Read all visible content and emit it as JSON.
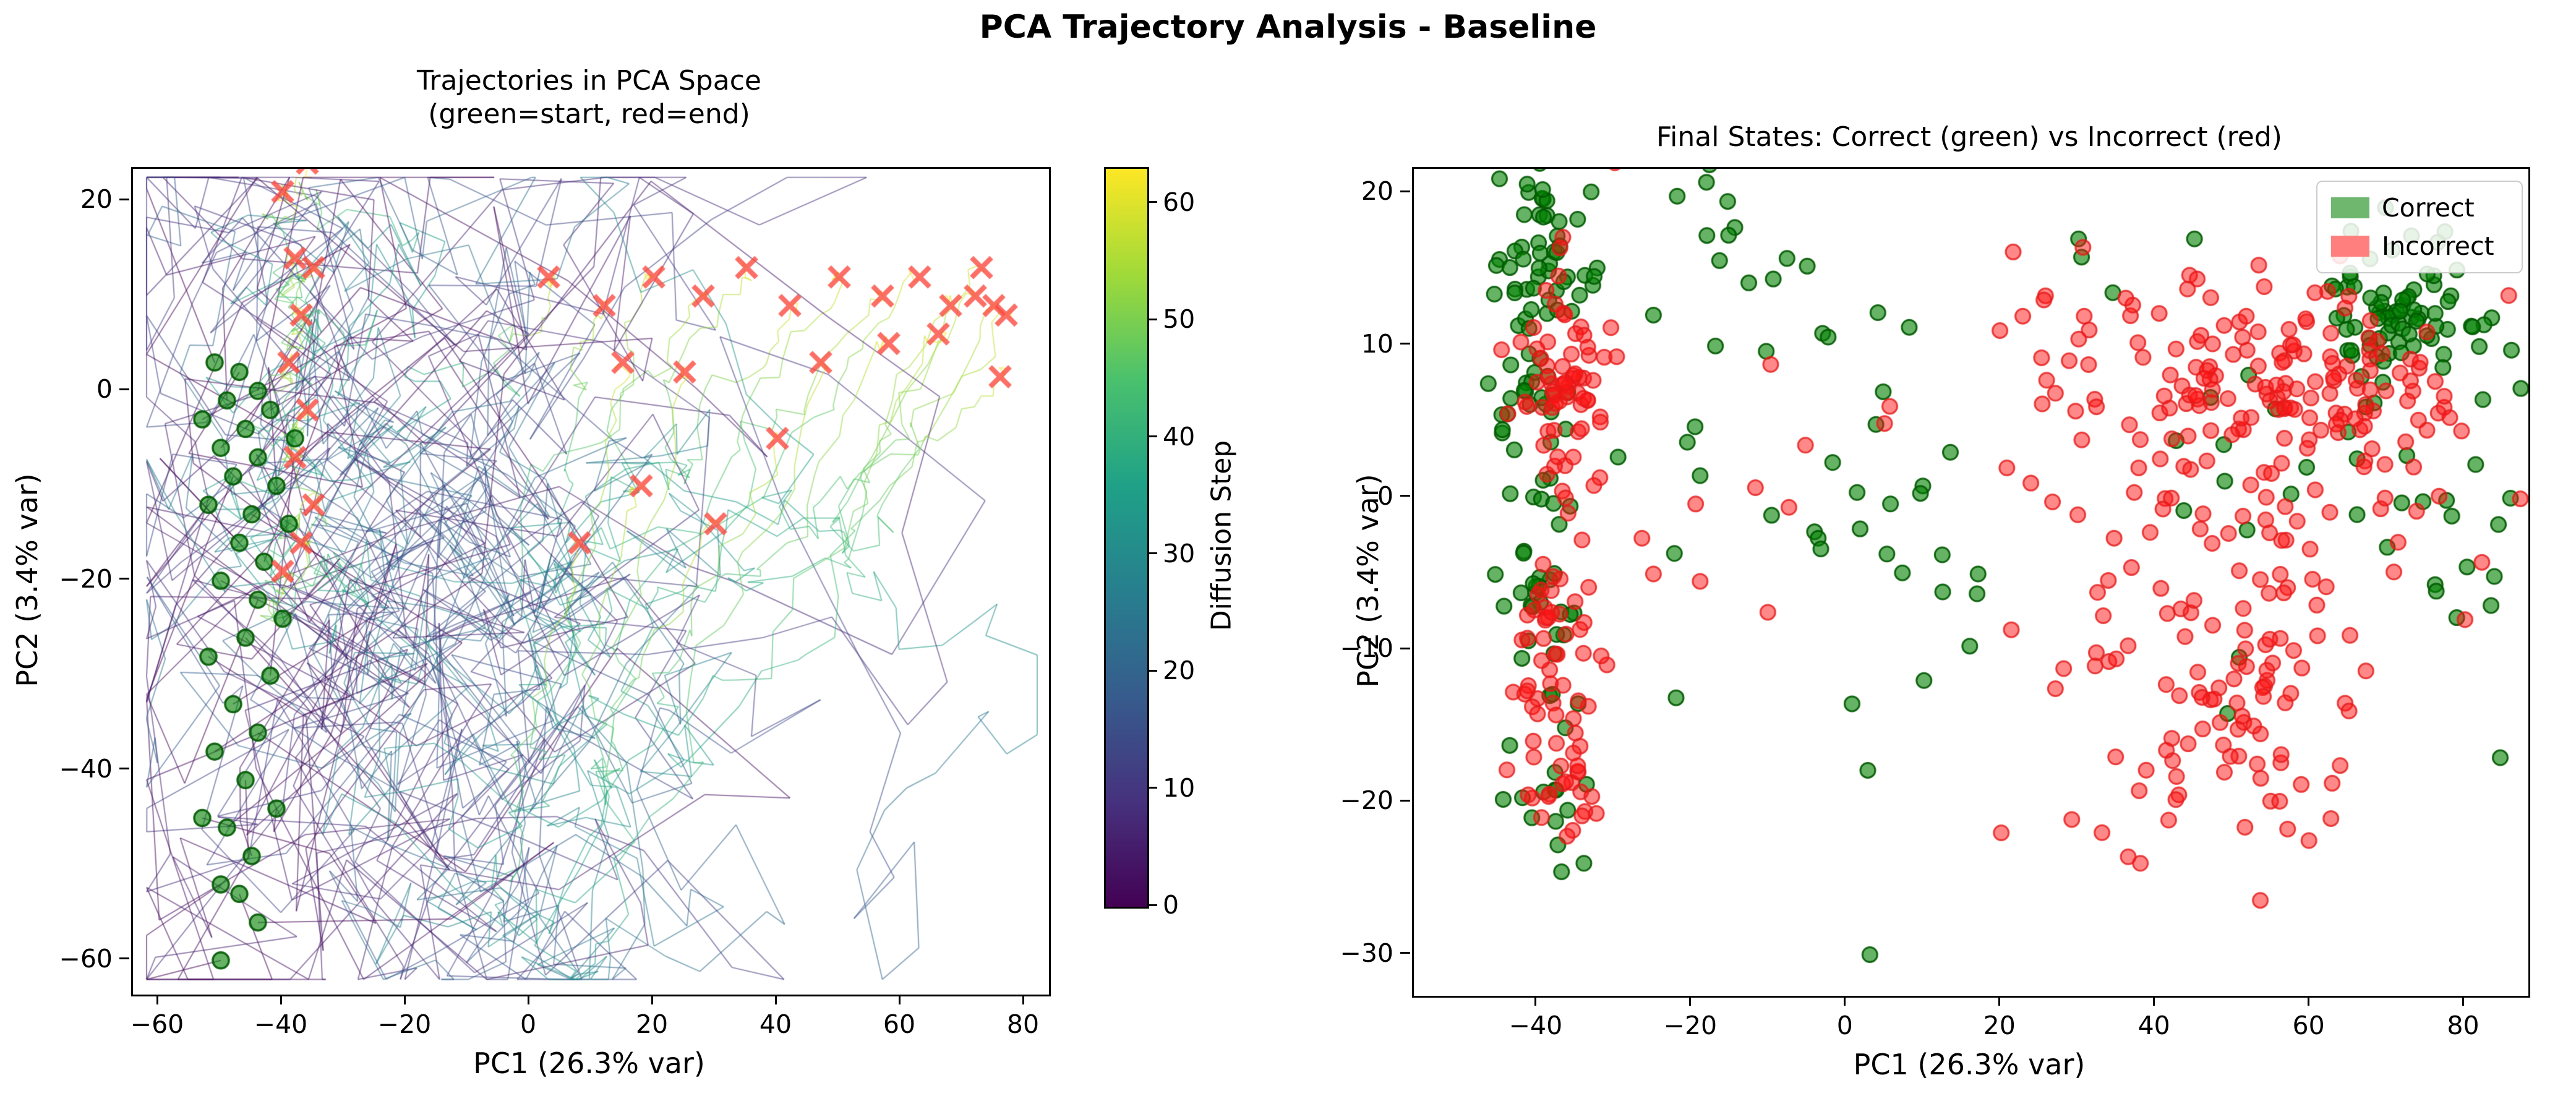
{
  "figure": {
    "suptitle": "PCA Trajectory Analysis - Baseline",
    "background": "#ffffff"
  },
  "left_plot": {
    "title_line1": "Trajectories in PCA Space",
    "title_line2": "(green=start, red=end)",
    "xlabel": "PC1 (26.3% var)",
    "ylabel": "PC2 (3.4% var)",
    "xticks": [
      -60,
      -40,
      -20,
      0,
      20,
      40,
      60,
      80
    ],
    "yticks": [
      20,
      0,
      -20,
      -40,
      -60
    ],
    "xlim": [
      -64.2,
      83.9
    ],
    "ylim": [
      -63.6,
      23.4
    ]
  },
  "colorbar": {
    "label": "Diffusion Step",
    "ticks": [
      0,
      10,
      20,
      30,
      40,
      50,
      60
    ],
    "vmin": 0,
    "vmax": 63,
    "colormap": "viridis",
    "viridis_stops": [
      "#440154",
      "#46327e",
      "#365c8d",
      "#277f8e",
      "#1fa187",
      "#4ac16d",
      "#a0da39",
      "#fde725"
    ]
  },
  "right_plot": {
    "title": "Final States: Correct (green) vs Incorrect (red)",
    "xlabel": "PC1 (26.3% var)",
    "ylabel": "PC2 (3.4% var)",
    "xticks": [
      -40,
      -20,
      0,
      20,
      40,
      60,
      80
    ],
    "yticks": [
      20,
      10,
      0,
      -10,
      -20,
      -30
    ],
    "xlim": [
      -56.0,
      88.2
    ],
    "ylim": [
      -32.7,
      21.6
    ]
  },
  "legend": {
    "items": [
      {
        "label": "Correct",
        "color": "#6fb66f"
      },
      {
        "label": "Incorrect",
        "color": "#ff7f7f"
      }
    ]
  },
  "style": {
    "green_fill": "rgba(0,128,0,0.6)",
    "green_edge": "rgba(0,90,0,0.9)",
    "red_fill": "rgba(255,20,20,0.5)",
    "red_edge": "rgba(230,25,25,0.8)",
    "end_x_color": "rgba(250,75,65,0.8)",
    "trajectory_alpha": 0.55,
    "trajectory_width": 2
  },
  "chart_data": [
    {
      "type": "line",
      "panel": "left",
      "description": "Diffusion trajectories in PCA space, 64 steps each, segment color = diffusion step (viridis 0-63); green circle = start, red x = end",
      "n_steps": 64,
      "seed": 9,
      "trajectory_format": [
        "start_x",
        "start_y",
        "end_x",
        "end_y"
      ],
      "trajectories": [
        [
          -51,
          3,
          -36,
          24
        ],
        [
          -47,
          2,
          3,
          12
        ],
        [
          -44,
          0,
          -40,
          21
        ],
        [
          -49,
          -1,
          12,
          9
        ],
        [
          -53,
          -3,
          -38,
          14
        ],
        [
          -46,
          -4,
          20,
          12
        ],
        [
          -42,
          -2,
          28,
          10
        ],
        [
          -50,
          -6,
          -35,
          13
        ],
        [
          -44,
          -7,
          35,
          13
        ],
        [
          -48,
          -9,
          42,
          9
        ],
        [
          -41,
          -10,
          -37,
          8
        ],
        [
          -52,
          -12,
          50,
          12
        ],
        [
          -45,
          -13,
          57,
          10
        ],
        [
          -39,
          -14,
          -39,
          3
        ],
        [
          -47,
          -16,
          63,
          12
        ],
        [
          -43,
          -18,
          68,
          9
        ],
        [
          -50,
          -20,
          -36,
          -2
        ],
        [
          -44,
          -22,
          72,
          10
        ],
        [
          -40,
          -24,
          75,
          9
        ],
        [
          -46,
          -26,
          -38,
          -7
        ],
        [
          -52,
          -28,
          77,
          8
        ],
        [
          -42,
          -30,
          73,
          13
        ],
        [
          -48,
          -33,
          -35,
          -12
        ],
        [
          -44,
          -36,
          66,
          6
        ],
        [
          -51,
          -38,
          58,
          5
        ],
        [
          -46,
          -41,
          -37,
          -16
        ],
        [
          -41,
          -44,
          40,
          -5
        ],
        [
          -49,
          -46,
          30,
          -14
        ],
        [
          -53,
          -45,
          -40,
          -19
        ],
        [
          -45,
          -49,
          18,
          -10
        ],
        [
          -50,
          -52,
          8,
          -16
        ],
        [
          -47,
          -53,
          25,
          2
        ],
        [
          -44,
          -56,
          15,
          3
        ],
        [
          -50,
          -60,
          47,
          3
        ],
        [
          -38,
          -5,
          76,
          1.5
        ]
      ]
    },
    {
      "type": "scatter",
      "panel": "right",
      "description": "Final states of trajectories; green = correct, red = incorrect",
      "seed": 23,
      "cluster_format": [
        "class",
        "center_x",
        "center_y",
        "sd_x",
        "sd_y",
        "count"
      ],
      "clusters": [
        [
          "correct",
          -40,
          16,
          3.5,
          4.5,
          55
        ],
        [
          "correct",
          -41,
          4,
          3,
          5,
          30
        ],
        [
          "correct",
          -40,
          -8,
          3,
          4,
          25
        ],
        [
          "correct",
          -38,
          -20,
          3,
          2.5,
          14
        ],
        [
          "correct",
          -8,
          6,
          11,
          8,
          30
        ],
        [
          "correct",
          5,
          -6,
          8,
          5,
          12
        ],
        [
          "correct",
          72,
          12,
          5.5,
          2.5,
          75
        ],
        [
          "correct",
          60,
          2,
          12,
          8,
          28
        ],
        [
          "correct",
          78,
          -3,
          4,
          5,
          12
        ],
        [
          "correct",
          -20,
          19,
          4,
          3,
          8
        ],
        [
          "incorrect",
          -37,
          8,
          3,
          3.5,
          70
        ],
        [
          "incorrect",
          -38,
          -10,
          3,
          4,
          45
        ],
        [
          "incorrect",
          -37,
          -18,
          3.5,
          3,
          25
        ],
        [
          "incorrect",
          -5,
          0,
          9,
          6,
          10
        ],
        [
          "incorrect",
          55,
          8,
          9,
          3.5,
          110
        ],
        [
          "incorrect",
          50,
          -7,
          10,
          6,
          85
        ],
        [
          "incorrect",
          46,
          -16,
          8,
          4,
          40
        ],
        [
          "incorrect",
          35,
          5,
          6,
          5,
          25
        ],
        [
          "incorrect",
          70,
          5,
          6,
          4,
          30
        ],
        [
          "incorrect",
          25,
          10,
          5,
          4,
          12
        ]
      ],
      "outlier_format": [
        "class",
        "x",
        "y"
      ],
      "outliers": [
        [
          "correct",
          3,
          -30
        ],
        [
          "correct",
          -34,
          -24
        ],
        [
          "correct",
          17,
          -5
        ],
        [
          "correct",
          10,
          -12
        ],
        [
          "correct",
          -15,
          23
        ],
        [
          "correct",
          30,
          17
        ],
        [
          "correct",
          45,
          17
        ],
        [
          "correct",
          -25,
          12
        ],
        [
          "incorrect",
          38,
          -24
        ],
        [
          "incorrect",
          20,
          -22
        ],
        [
          "incorrect",
          -30,
          22
        ],
        [
          "incorrect",
          -25,
          -5
        ],
        [
          "incorrect",
          80,
          -8
        ],
        [
          "incorrect",
          65,
          -14
        ]
      ]
    }
  ]
}
